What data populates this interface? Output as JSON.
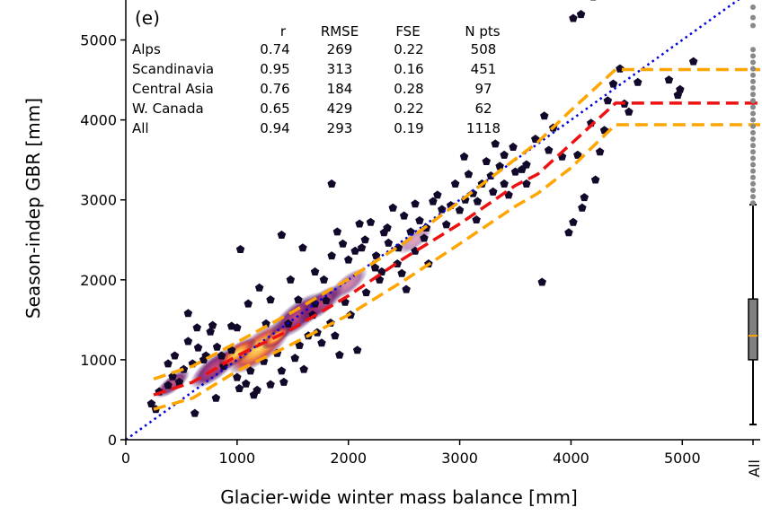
{
  "chart_data": {
    "type": "scatter",
    "panel_label": "(e)",
    "xlabel": "Glacier-wide winter mass balance [mm]",
    "ylabel": "Season-indep GBR [mm]",
    "xlim": [
      0,
      5700
    ],
    "ylim": [
      0,
      5500
    ],
    "x_ticks": [
      0,
      1000,
      2000,
      3000,
      4000,
      5000
    ],
    "y_ticks": [
      0,
      1000,
      2000,
      3000,
      4000,
      5000
    ],
    "stats_table": {
      "headers": [
        "r",
        "RMSE",
        "FSE",
        "N pts"
      ],
      "rows": [
        {
          "region": "Alps",
          "r": "0.74",
          "rmse": "269",
          "fse": "0.22",
          "npts": "508"
        },
        {
          "region": "Scandinavia",
          "r": "0.95",
          "rmse": "313",
          "fse": "0.16",
          "npts": "451"
        },
        {
          "region": "Central Asia",
          "r": "0.76",
          "rmse": "184",
          "fse": "0.28",
          "npts": "97"
        },
        {
          "region": "W. Canada",
          "r": "0.65",
          "rmse": "429",
          "fse": "0.22",
          "npts": "62"
        },
        {
          "region": "All",
          "r": "0.94",
          "rmse": "293",
          "fse": "0.19",
          "npts": "1118"
        }
      ]
    },
    "one_to_one_line": {
      "x": [
        0,
        5700
      ],
      "y": [
        0,
        5700
      ],
      "color": "#0000dd",
      "style": "dotted"
    },
    "median_line": {
      "color": "#ee1111",
      "x": [
        250,
        600,
        1000,
        1500,
        2000,
        2500,
        3000,
        3500,
        3700,
        4000,
        4400,
        4500,
        5700
      ],
      "y": [
        560,
        720,
        1050,
        1390,
        1800,
        2270,
        2700,
        3180,
        3320,
        3700,
        4210,
        4210,
        4210
      ]
    },
    "upper_quantile_line": {
      "color": "#ffa500",
      "x": [
        250,
        600,
        1000,
        1500,
        2000,
        2500,
        3000,
        3500,
        3700,
        4000,
        4400,
        4500,
        5700
      ],
      "y": [
        760,
        920,
        1220,
        1600,
        2010,
        2460,
        2980,
        3510,
        3720,
        4120,
        4630,
        4630,
        4630
      ]
    },
    "lower_quantile_line": {
      "color": "#ffa500",
      "x": [
        250,
        600,
        1000,
        1500,
        2000,
        2500,
        3000,
        3500,
        3700,
        4000,
        4400,
        4500,
        5700
      ],
      "y": [
        380,
        520,
        860,
        1200,
        1560,
        1990,
        2450,
        2920,
        3080,
        3400,
        3940,
        3940,
        3940
      ]
    },
    "outlier_points": [
      [
        230,
        450
      ],
      [
        300,
        600
      ],
      [
        380,
        680
      ],
      [
        420,
        790
      ],
      [
        480,
        720
      ],
      [
        520,
        880
      ],
      [
        560,
        1230
      ],
      [
        600,
        950
      ],
      [
        640,
        1400
      ],
      [
        650,
        1150
      ],
      [
        700,
        1000
      ],
      [
        720,
        1050
      ],
      [
        760,
        1350
      ],
      [
        780,
        1430
      ],
      [
        820,
        1160
      ],
      [
        860,
        1050
      ],
      [
        880,
        920
      ],
      [
        950,
        1120
      ],
      [
        1000,
        780
      ],
      [
        1020,
        640
      ],
      [
        1080,
        700
      ],
      [
        1120,
        860
      ],
      [
        1150,
        560
      ],
      [
        1180,
        620
      ],
      [
        1240,
        980
      ],
      [
        1300,
        690
      ],
      [
        1360,
        1080
      ],
      [
        1400,
        860
      ],
      [
        1420,
        720
      ],
      [
        1460,
        1450
      ],
      [
        1520,
        1020
      ],
      [
        1560,
        1180
      ],
      [
        1600,
        880
      ],
      [
        1640,
        1300
      ],
      [
        1680,
        1560
      ],
      [
        1720,
        1340
      ],
      [
        1760,
        1210
      ],
      [
        1800,
        1740
      ],
      [
        1840,
        1460
      ],
      [
        1880,
        1300
      ],
      [
        1920,
        1060
      ],
      [
        1970,
        1720
      ],
      [
        2020,
        1560
      ],
      [
        2080,
        1120
      ],
      [
        2120,
        2400
      ],
      [
        2160,
        1840
      ],
      [
        2200,
        2720
      ],
      [
        2240,
        2150
      ],
      [
        2280,
        2000
      ],
      [
        2320,
        2590
      ],
      [
        2360,
        2460
      ],
      [
        2400,
        2900
      ],
      [
        2440,
        2200
      ],
      [
        2480,
        2080
      ],
      [
        2520,
        1880
      ],
      [
        2560,
        2600
      ],
      [
        2600,
        2360
      ],
      [
        2640,
        2740
      ],
      [
        2680,
        2520
      ],
      [
        2720,
        2200
      ],
      [
        2760,
        2980
      ],
      [
        2800,
        3060
      ],
      [
        2840,
        2880
      ],
      [
        2880,
        2690
      ],
      [
        2920,
        2930
      ],
      [
        2960,
        3200
      ],
      [
        3000,
        2870
      ],
      [
        3040,
        3540
      ],
      [
        3080,
        3320
      ],
      [
        3120,
        3080
      ],
      [
        3160,
        2980
      ],
      [
        3200,
        3200
      ],
      [
        3240,
        3480
      ],
      [
        3280,
        3300
      ],
      [
        3320,
        3700
      ],
      [
        3360,
        3420
      ],
      [
        3400,
        3560
      ],
      [
        3440,
        3060
      ],
      [
        3480,
        3660
      ],
      [
        3560,
        3380
      ],
      [
        3600,
        3440
      ],
      [
        3680,
        3760
      ],
      [
        3740,
        1970
      ],
      [
        3760,
        4050
      ],
      [
        3800,
        3620
      ],
      [
        3840,
        3900
      ],
      [
        3920,
        3540
      ],
      [
        3980,
        2590
      ],
      [
        4020,
        2720
      ],
      [
        4060,
        3560
      ],
      [
        4100,
        2900
      ],
      [
        4120,
        3030
      ],
      [
        4180,
        3960
      ],
      [
        4220,
        3250
      ],
      [
        4260,
        3600
      ],
      [
        4300,
        3870
      ],
      [
        4330,
        4240
      ],
      [
        4380,
        4450
      ],
      [
        4440,
        4640
      ],
      [
        4480,
        4200
      ],
      [
        4520,
        4100
      ],
      [
        4600,
        4470
      ],
      [
        4880,
        4500
      ],
      [
        4960,
        4310
      ],
      [
        4980,
        4380
      ],
      [
        5100,
        4730
      ],
      [
        4020,
        5270
      ],
      [
        4090,
        5320
      ],
      [
        4200,
        5540
      ],
      [
        1850,
        3200
      ],
      [
        1590,
        2400
      ],
      [
        1400,
        2560
      ],
      [
        1030,
        2380
      ],
      [
        560,
        1580
      ],
      [
        3050,
        3000
      ],
      [
        1260,
        1450
      ],
      [
        1480,
        2000
      ],
      [
        2100,
        2700
      ],
      [
        2000,
        2250
      ],
      [
        1850,
        2300
      ],
      [
        1700,
        1700
      ],
      [
        950,
        1420
      ],
      [
        810,
        520
      ],
      [
        440,
        1050
      ],
      [
        270,
        380
      ],
      [
        380,
        950
      ],
      [
        1700,
        2100
      ],
      [
        2350,
        2650
      ],
      [
        2600,
        2950
      ],
      [
        3300,
        3100
      ],
      [
        1100,
        1700
      ],
      [
        1200,
        1900
      ],
      [
        1900,
        2600
      ],
      [
        620,
        330
      ],
      [
        1550,
        1750
      ],
      [
        2060,
        2360
      ],
      [
        2250,
        2300
      ],
      [
        2450,
        2400
      ],
      [
        3150,
        2750
      ],
      [
        2300,
        2100
      ],
      [
        1300,
        1750
      ],
      [
        1000,
        1400
      ],
      [
        2500,
        2800
      ],
      [
        2700,
        2650
      ],
      [
        3400,
        3200
      ],
      [
        3600,
        3200
      ],
      [
        3500,
        3350
      ],
      [
        1780,
        2000
      ],
      [
        1950,
        2450
      ],
      [
        2150,
        2500
      ]
    ],
    "boxplot": {
      "label": "All",
      "min": 190,
      "q1": 1000,
      "median": 1300,
      "q3": 1760,
      "max": 2940,
      "fliers": [
        2960,
        3040,
        3120,
        3200,
        3280,
        3360,
        3440,
        3520,
        3600,
        3680,
        3760,
        3840,
        3920,
        4000,
        4080,
        4160,
        4240,
        4320,
        4400,
        4480,
        4560,
        4640,
        4720,
        4800,
        4880,
        5180,
        5280,
        5410
      ]
    },
    "colors": {
      "points": "#12082a",
      "density_low": "#3a0a60",
      "density_mid": "#c23b5a",
      "density_high": "#fcbf3a",
      "box_fill": "#808080",
      "box_median": "#ffa500",
      "flier": "#888888"
    }
  }
}
